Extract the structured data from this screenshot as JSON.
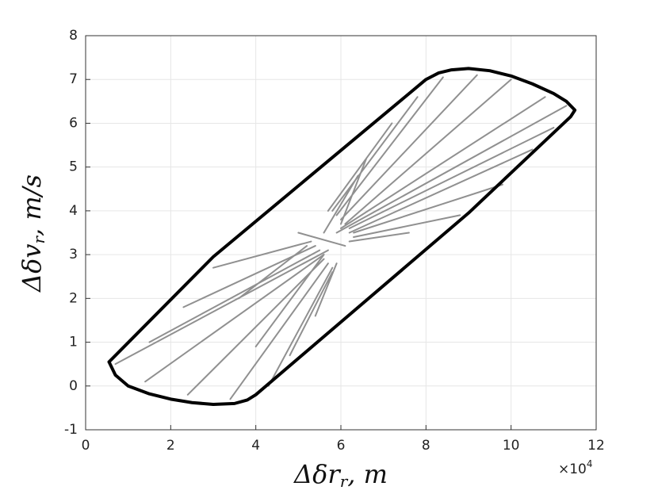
{
  "chart_data": {
    "type": "line",
    "x_label": {
      "main": "Δδr",
      "sub": "r",
      "rest": ", m"
    },
    "y_label": {
      "main": "Δδv",
      "sub": "r",
      "rest": ", m/s"
    },
    "x_multiplier": {
      "base": "×10",
      "exponent": "4"
    },
    "xlim": [
      0,
      12
    ],
    "xticks": [
      0,
      2,
      4,
      6,
      8,
      10,
      12
    ],
    "ylim": [
      -1,
      8
    ],
    "yticks": [
      -1,
      0,
      1,
      2,
      3,
      4,
      5,
      6,
      7,
      8
    ],
    "grid": true,
    "series": [
      {
        "color": "#909090",
        "width": 2,
        "x": [
          5.9,
          11.3,
          null,
          6.0,
          10.8,
          null,
          6.1,
          10.0,
          null,
          6.0,
          9.2,
          null,
          5.9,
          8.4,
          null,
          5.8,
          7.8,
          null,
          5.7,
          7.2,
          null,
          6.2,
          11.0,
          null,
          6.2,
          10.5,
          null,
          6.3,
          9.8,
          null,
          6.3,
          8.8,
          null,
          6.2,
          7.6,
          null,
          6.0,
          6.6,
          null,
          5.6,
          6.4,
          null,
          5.7,
          0.7,
          null,
          5.6,
          1.4,
          null,
          5.6,
          2.4,
          null,
          5.7,
          3.4,
          null,
          5.8,
          4.3,
          null,
          5.8,
          4.8,
          null,
          5.9,
          5.4,
          null,
          5.5,
          1.5,
          null,
          5.4,
          2.3,
          null,
          5.3,
          3.0,
          null,
          5.2,
          3.6,
          null,
          5.6,
          4.0,
          null,
          6.1,
          5.0
        ],
        "y": [
          3.5,
          6.4,
          null,
          3.6,
          6.6,
          null,
          3.7,
          7.0,
          null,
          3.8,
          7.1,
          null,
          3.9,
          7.05,
          null,
          4.0,
          6.6,
          null,
          4.0,
          6.0,
          null,
          3.6,
          5.9,
          null,
          3.5,
          5.4,
          null,
          3.5,
          4.6,
          null,
          3.4,
          3.9,
          null,
          3.3,
          3.5,
          null,
          3.7,
          5.2,
          null,
          3.5,
          4.8,
          null,
          3.1,
          0.5,
          null,
          3.0,
          0.1,
          null,
          2.9,
          -0.2,
          null,
          2.8,
          -0.3,
          null,
          2.7,
          0.0,
          null,
          2.6,
          0.7,
          null,
          2.8,
          1.6,
          null,
          3.1,
          1.0,
          null,
          3.2,
          1.8,
          null,
          3.3,
          2.7,
          null,
          3.2,
          2.0,
          null,
          3.0,
          0.9,
          null,
          3.2,
          3.5
        ]
      },
      {
        "color": "#000000",
        "width": 4,
        "x": [
          0.55,
          3.0,
          8.0,
          8.3,
          8.6,
          9.0,
          9.5,
          10.0,
          10.5,
          11.0,
          11.3,
          11.5,
          11.4,
          9.0,
          4.0,
          3.8,
          3.5,
          3.0,
          2.5,
          2.0,
          1.5,
          1.0,
          0.7,
          0.55
        ],
        "y": [
          0.55,
          2.95,
          7.0,
          7.15,
          7.22,
          7.25,
          7.2,
          7.08,
          6.9,
          6.68,
          6.5,
          6.3,
          6.15,
          3.95,
          -0.2,
          -0.32,
          -0.4,
          -0.42,
          -0.38,
          -0.3,
          -0.18,
          0.0,
          0.25,
          0.55
        ]
      }
    ]
  }
}
